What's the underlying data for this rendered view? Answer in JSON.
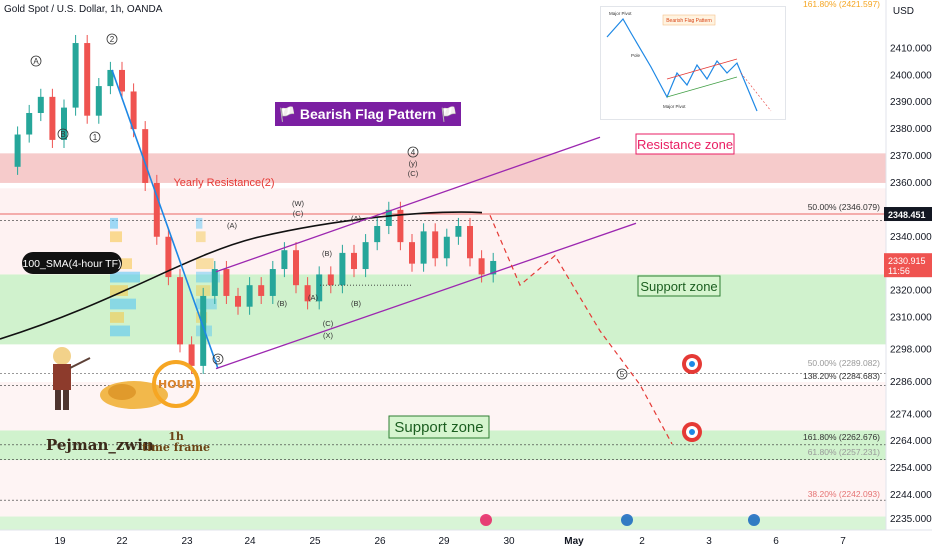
{
  "header": {
    "symbol_line": "Gold Spot / U.S. Dollar, 1h, OANDA",
    "currency": "USD"
  },
  "price_axis": {
    "ticks": [
      "2410.000",
      "2400.000",
      "2390.000",
      "2380.000",
      "2370.000",
      "2360.000",
      "2340.000",
      "2320.000",
      "2310.000",
      "2298.000",
      "2286.000",
      "2274.000",
      "2264.000",
      "2254.000",
      "2244.000",
      "2235.000"
    ],
    "badge_current_price": "2348.451",
    "badge_last_price": "2330.915",
    "badge_countdown": "11:56"
  },
  "time_axis": {
    "labels": [
      "19",
      "22",
      "23",
      "24",
      "25",
      "26",
      "29",
      "30",
      "May",
      "2",
      "3",
      "6",
      "7"
    ]
  },
  "annotations": {
    "title_banner": "🏳️ Bearish Flag Pattern 🏳️",
    "resistance_zone": "Resistance zone",
    "support_zone_upper": "Support zone",
    "support_zone_lower": "Support zone",
    "yearly_resistance": "Yearly Resistance(2)",
    "sma_label": "100_SMA(4-hour TF)",
    "wave_top_1": "2",
    "wave_top_4": "4",
    "wave_y": "(y)",
    "wave_c_top": "(C)",
    "wave_w": "(W)",
    "wave_c_w": "(C)",
    "wave_a_left": "(A)",
    "wave_b_left": "(B)",
    "wave_a2": "(A)",
    "wave_b2": "(B)",
    "wave_c_low": "(C)",
    "wave_x": "(X)",
    "wave_a3": "(A)",
    "wave_b3": "(B)",
    "wave_3": "3",
    "wave_5": "5",
    "wave_A_early": "A",
    "wave_B_early": "B",
    "wave_1_early": "1"
  },
  "fibonacci": {
    "fib_top": "161.80% (2421.597)",
    "fib_50": "50.00% (2346.079)",
    "fib_50b": "50.00% (2289.082)",
    "fib_138": "138.20% (2284.683)",
    "fib_1618": "161.80% (2262.676)",
    "fib_618": "61.80% (2257.231)",
    "fib_382": "38.20% (2242.093)"
  },
  "inset": {
    "title": "Bearish Flag Pattern",
    "major_pivot_top": "Major Pivot",
    "pole": "Pole",
    "major_pivot_bottom": "Major Pivot"
  },
  "branding": {
    "author": "Pejman_zwin",
    "tf_line1": "1h",
    "tf_line2": "time frame",
    "hour_badge": "HOUR"
  },
  "colors": {
    "bull": "#26a69a",
    "bear": "#ef5350",
    "resistance_fill": "#f4c2c2",
    "support_fill": "#c8f0c4",
    "channel": "#9c27b0",
    "banner_bg": "#7b1fa2",
    "zone_label_red": "#e91e63",
    "yearly_red": "#e53935"
  },
  "chart_data": {
    "type": "candlestick",
    "title": "Gold Spot / U.S. Dollar, 1h, OANDA",
    "y_unit": "USD",
    "ylim": [
      2231,
      2428
    ],
    "x_categories": [
      "19",
      "22",
      "23",
      "24",
      "25",
      "26",
      "29",
      "30",
      "May",
      "2",
      "3",
      "6",
      "7"
    ],
    "price_path": [
      [
        0,
        2366
      ],
      [
        1,
        2378
      ],
      [
        2,
        2386
      ],
      [
        3,
        2392
      ],
      [
        4,
        2376
      ],
      [
        5,
        2388
      ],
      [
        6,
        2412
      ],
      [
        7,
        2385
      ],
      [
        8,
        2396
      ],
      [
        9,
        2402
      ],
      [
        10,
        2394
      ],
      [
        11,
        2380
      ],
      [
        12,
        2360
      ],
      [
        13,
        2340
      ],
      [
        14,
        2325
      ],
      [
        15,
        2300
      ],
      [
        16,
        2292
      ],
      [
        17,
        2318
      ],
      [
        18,
        2328
      ],
      [
        19,
        2318
      ],
      [
        20,
        2314
      ],
      [
        21,
        2322
      ],
      [
        22,
        2318
      ],
      [
        23,
        2328
      ],
      [
        24,
        2335
      ],
      [
        25,
        2322
      ],
      [
        26,
        2316
      ],
      [
        27,
        2326
      ],
      [
        28,
        2322
      ],
      [
        29,
        2334
      ],
      [
        30,
        2328
      ],
      [
        31,
        2338
      ],
      [
        32,
        2344
      ],
      [
        33,
        2350
      ],
      [
        34,
        2338
      ],
      [
        35,
        2330
      ],
      [
        36,
        2342
      ],
      [
        37,
        2332
      ],
      [
        38,
        2340
      ],
      [
        39,
        2344
      ],
      [
        40,
        2332
      ],
      [
        41,
        2326
      ],
      [
        42,
        2331
      ]
    ],
    "projection": [
      [
        42,
        2331
      ],
      [
        43,
        2320
      ],
      [
        44,
        2326
      ],
      [
        45,
        2330
      ],
      [
        47,
        2306
      ],
      [
        49,
        2286
      ],
      [
        51,
        2262
      ]
    ],
    "horizontal_levels": [
      {
        "label": "Yearly Resistance(2)",
        "price": 2348.451
      },
      {
        "label": "50.00% (2346.079)",
        "price": 2346.079
      },
      {
        "label": "50.00% (2289.082)",
        "price": 2289.082
      },
      {
        "label": "138.20% (2284.683)",
        "price": 2284.683
      },
      {
        "label": "161.80% (2262.676)",
        "price": 2262.676
      },
      {
        "label": "61.80% (2257.231)",
        "price": 2257.231
      },
      {
        "label": "38.20% (2242.093)",
        "price": 2242.093
      }
    ],
    "zones": [
      {
        "label": "Resistance zone",
        "from": 2360,
        "to": 2371
      },
      {
        "label": "Support zone",
        "from": 2300,
        "to": 2326
      },
      {
        "label": "Support zone",
        "from": 2257,
        "to": 2268
      }
    ],
    "grid": false,
    "legend": "none"
  }
}
